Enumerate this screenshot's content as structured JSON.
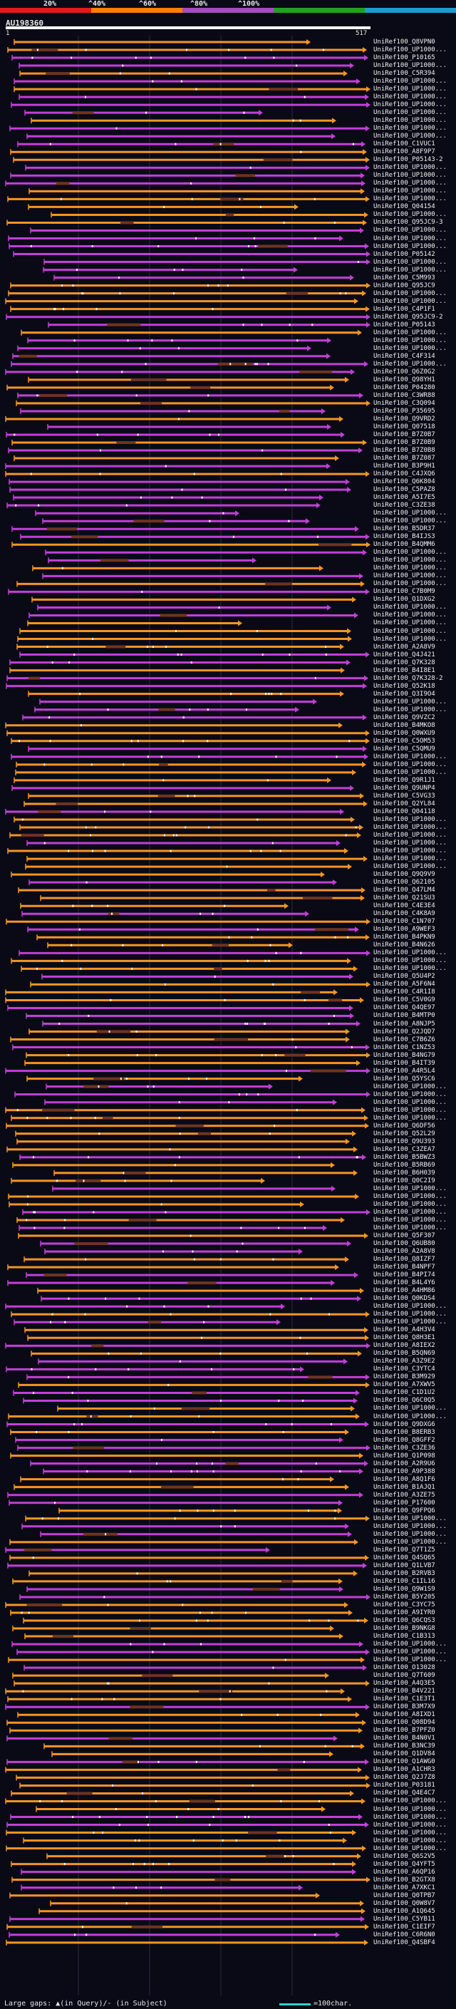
{
  "header": {
    "query_id": "AU198360",
    "coord_start": "1",
    "coord_end": "517",
    "percent_labels": [
      "20%",
      "^40%",
      "^60%",
      "^80%",
      "^100%"
    ],
    "scale_colors": [
      "#e31a1c",
      "#ff7f00",
      "#a64dbf",
      "#22a022",
      "#1f9ad1"
    ]
  },
  "colors": {
    "orange": "#f59523",
    "magenta": "#c33fd8",
    "green": "#2fbf2a",
    "gap_tick": "#ffffff",
    "block_dark": "#6e3420"
  },
  "hits": [
    "UniRef100_Q8VPN0",
    "UniRef100_UP1000...",
    "UniRef100_P10165",
    "UniRef100_UP1000...",
    "UniRef100_C5R394",
    "UniRef100_UP1000...",
    "UniRef100_UP1000...",
    "UniRef100_UP1000...",
    "UniRef100_UP1000...",
    "UniRef100_UP1000...",
    "UniRef100_UP1000...",
    "UniRef100_UP1000...",
    "UniRef100_UP1000...",
    "UniRef100_C1VUC1",
    "UniRef100_A8F9P7",
    "UniRef100_P05143-2",
    "UniRef100_UP1000...",
    "UniRef100_UP1000...",
    "UniRef100_UP1000...",
    "UniRef100_UP1000...",
    "UniRef100_UP1000...",
    "UniRef100_Q04154",
    "UniRef100_UP1000...",
    "UniRef100_Q95JC9-3",
    "UniRef100_UP1000...",
    "UniRef100_UP1000...",
    "UniRef100_UP1000...",
    "UniRef100_P05142",
    "UniRef100_UP1000...",
    "UniRef100_UP1000...",
    "UniRef100_C5M993",
    "UniRef100_Q95JC9",
    "UniRef100_UP1000...",
    "UniRef100_UP1000...",
    "UniRef100_C4P1F1",
    "UniRef100_Q95JC9-2",
    "UniRef100_P05143",
    "UniRef100_UP1000...",
    "UniRef100_UP1000...",
    "UniRef100_UP1000...",
    "UniRef100_C4F314",
    "UniRef100_UP1000...",
    "UniRef100_Q6Z0G2",
    "UniRef100_Q98YH1",
    "UniRef100_P04280",
    "UniRef100_C3WR88",
    "UniRef100_C3Q094",
    "UniRef100_P35695",
    "UniRef100_Q9VRD2",
    "UniRef100_Q07518",
    "UniRef100_B7Z0B7",
    "UniRef100_B7Z0B9",
    "UniRef100_B7Z0B8",
    "UniRef100_B7Z087",
    "UniRef100_B3P9H1",
    "UniRef100_C4JXQ6",
    "UniRef100_Q6K804",
    "UniRef100_C5PAZ8",
    "UniRef100_A5I7E5",
    "UniRef100_C3ZE38",
    "UniRef100_UP1000...",
    "UniRef100_UP1000...",
    "UniRef100_B5DR37",
    "UniRef100_B4IJS3",
    "UniRef100_B4QMM6",
    "UniRef100_UP1000...",
    "UniRef100_UP1000...",
    "UniRef100_UP1000...",
    "UniRef100_UP1000...",
    "UniRef100_UP1000...",
    "UniRef100_C7B0M9",
    "UniRef100_Q1DXG2",
    "UniRef100_UP1000...",
    "UniRef100_UP1000...",
    "UniRef100_UP1000...",
    "UniRef100_UP1000...",
    "UniRef100_UP1000...",
    "UniRef100_A2A8V9",
    "UniRef100_Q4J421",
    "UniRef100_Q7K328",
    "UniRef100_B4I8E1",
    "UniRef100_Q7K328-2",
    "UniRef100_Q52K18",
    "UniRef100_Q3I9O4",
    "UniRef100_UP1000...",
    "UniRef100_UP1000...",
    "UniRef100_Q9VZC2",
    "UniRef100_B4MKO8",
    "UniRef100_Q0WXU9",
    "UniRef100_C5OM53",
    "UniRef100_C5QMU9",
    "UniRef100_UP1000...",
    "UniRef100_UP1000...",
    "UniRef100_UP1000...",
    "UniRef100_Q9R1J1",
    "UniRef100_Q9UNP4",
    "UniRef100_C5VG33",
    "UniRef100_Q2YL84",
    "UniRef100_Q04118",
    "UniRef100_UP1000...",
    "UniRef100_UP1000...",
    "UniRef100_UP1000...",
    "UniRef100_UP1000...",
    "UniRef100_UP1000...",
    "UniRef100_UP1000...",
    "UniRef100_UP1000...",
    "UniRef100_Q9Q9V9",
    "UniRef100_Q62105",
    "UniRef100_Q47LM4",
    "UniRef100_Q21SU3",
    "UniRef100_C4E3E4",
    "UniRef100_C4K8A9",
    "UniRef100_C1N707",
    "UniRef100_A9WEF3",
    "UniRef100_B4PKN9",
    "UniRef100_B4N626",
    "UniRef100_UP1000...",
    "UniRef100_UP1000...",
    "UniRef100_UP1000...",
    "UniRef100_Q5U4P2",
    "UniRef100_A5F6N4",
    "UniRef100_C4R1I8",
    "UniRef100_C5V0G9",
    "UniRef100_Q4QE97",
    "UniRef100_B4MTP0",
    "UniRef100_A8NJP5",
    "UniRef100_Q2JQD7",
    "UniRef100_C7B6Z6",
    "UniRef100_C1NZ53",
    "UniRef100_B4NG79",
    "UniRef100_B4IT39",
    "UniRef100_A4R5L4",
    "UniRef100_Q5YSC6",
    "UniRef100_UP1000...",
    "UniRef100_UP1000...",
    "UniRef100_UP1000...",
    "UniRef100_UP1000...",
    "UniRef100_UP1000...",
    "UniRef100_Q6DF56",
    "UniRef100_Q52L29",
    "UniRef100_Q9U393",
    "UniRef100_C3ZEA7",
    "UniRef100_B5BWZ3",
    "UniRef100_B5RB69",
    "UniRef100_B6H039",
    "UniRef100_Q0C2I9",
    "UniRef100_UP1000...",
    "UniRef100_UP1000...",
    "UniRef100_UP1000...",
    "UniRef100_UP1000...",
    "UniRef100_UP1000...",
    "UniRef100_UP1000...",
    "UniRef100_Q5F307",
    "UniRef100_Q6UB80",
    "UniRef100_A2A8V8",
    "UniRef100_Q8IZF7",
    "UniRef100_B4NPF7",
    "UniRef100_B4PI74",
    "UniRef100_B4L4Y6",
    "UniRef100_A4HM86",
    "UniRef100_Q0KDS4",
    "UniRef100_UP1000...",
    "UniRef100_UP1000...",
    "UniRef100_UP1000...",
    "UniRef100_A4H3V4",
    "UniRef100_Q8H3E1",
    "UniRef100_A8IEX2",
    "UniRef100_B5QN69",
    "UniRef100_A3Z9E2",
    "UniRef100_C3YTC4",
    "UniRef100_B3M929",
    "UniRef100_A7XWV5",
    "UniRef100_C1D1U2",
    "UniRef100_Q6C0Q5",
    "UniRef100_UP1000...",
    "UniRef100_UP1000...",
    "UniRef100_Q9DXG6",
    "UniRef100_B8ERB3",
    "UniRef100_Q8GFF2",
    "UniRef100_C3ZE36",
    "UniRef100_Q1P098",
    "UniRef100_A2R9U6",
    "UniRef100_A9P388",
    "UniRef100_A8Q1F6",
    "UniRef100_B1AJQ1",
    "UniRef100_A3ZE75",
    "UniRef100_P17600",
    "UniRef100_Q9FPQ6",
    "UniRef100_UP1000...",
    "UniRef100_UP1000...",
    "UniRef100_UP1000...",
    "UniRef100_UP1000...",
    "UniRef100_Q7T1Z5",
    "UniRef100_Q4SQ65",
    "UniRef100_Q1LVB7",
    "UniRef100_B2RVB3",
    "UniRef100_C1IL16",
    "UniRef100_Q9W1S9",
    "UniRef100_B5Y205",
    "UniRef100_C3YC75",
    "UniRef100_A9IYR0",
    "UniRef100_Q6CQS3",
    "UniRef100_B9NKG8",
    "UniRef100_C1B313",
    "UniRef100_UP1000...",
    "UniRef100_UP1000...",
    "UniRef100_UP1000...",
    "UniRef100_O13028",
    "UniRef100_Q7T609",
    "UniRef100_A4Q3E5",
    "UniRef100_B4V221",
    "UniRef100_C1E3T1",
    "UniRef100_B3M7X9",
    "UniRef100_A8IXD1",
    "UniRef100_Q08D94",
    "UniRef100_B7PFZ0",
    "UniRef100_B4N0V1",
    "UniRef100_B3NC39",
    "UniRef100_Q1DV84",
    "UniRef100_Q1AWG0",
    "UniRef100_A1CHR3",
    "UniRef100_Q2J7Z8",
    "UniRef100_P03181",
    "UniRef100_Q4E4C7",
    "UniRef100_UP1000...",
    "UniRef100_UP1000...",
    "UniRef100_UP1000...",
    "UniRef100_UP1000...",
    "UniRef100_UP1000...",
    "UniRef100_UP1000...",
    "UniRef100_UP1000...",
    "UniRef100_Q6S2V5",
    "UniRef100_Q4YFT5",
    "UniRef100_A6QP16",
    "UniRef100_B2GTX8",
    "UniRef100_A7XKC1",
    "UniRef100_Q0TPB7",
    "UniRef100_Q0W8V7",
    "UniRef100_A1Q645",
    "UniRef100_C5YB11",
    "UniRef100_C1EIF7",
    "UniRef100_C6R6N0",
    "UniRef100_Q4SBF4"
  ],
  "footer": {
    "gap_legend": "Large gaps: ▲(in Query)/- (in Subject)",
    "scale_legend": "=100char."
  }
}
